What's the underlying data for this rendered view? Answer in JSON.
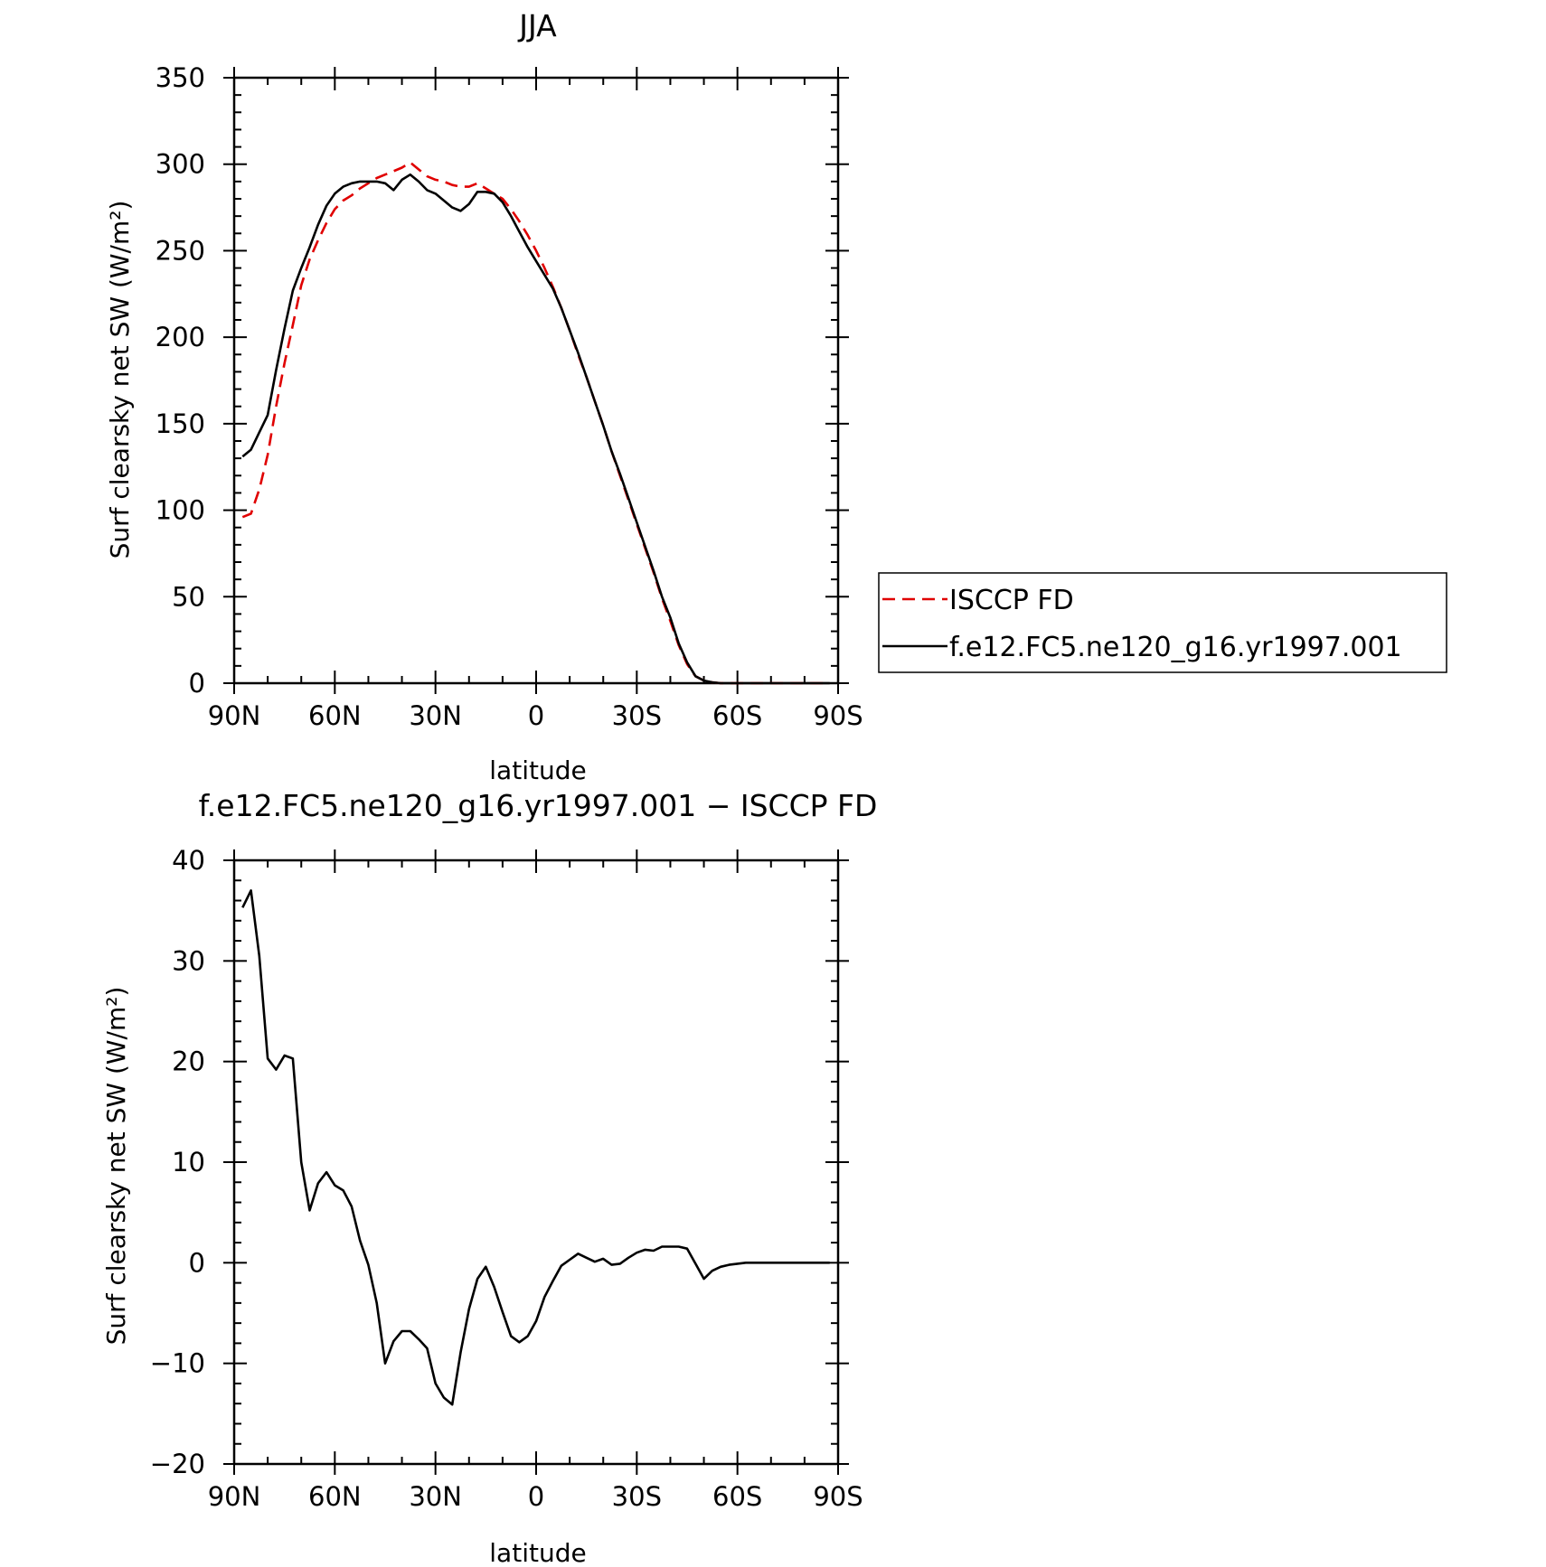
{
  "chart_data": [
    {
      "type": "line",
      "title": "JJA",
      "xlabel": "latitude",
      "ylabel": "Surf clearsky net SW (W/m²)",
      "xlim": [
        90,
        -90
      ],
      "ylim": [
        0,
        350
      ],
      "x_ticks": [
        90,
        60,
        30,
        0,
        -30,
        -60,
        -90
      ],
      "x_tick_labels": [
        "90N",
        "60N",
        "30N",
        "0",
        "30S",
        "60S",
        "90S"
      ],
      "y_ticks": [
        0,
        50,
        100,
        150,
        200,
        250,
        300,
        350
      ],
      "y_tick_labels": [
        "0",
        "50",
        "100",
        "150",
        "200",
        "250",
        "300",
        "350"
      ],
      "legend_position": "right",
      "series": [
        {
          "name": "ISCCP FD",
          "color": "#e00000",
          "dash": "dashed",
          "x": [
            87.5,
            85,
            82.5,
            80,
            77.5,
            75,
            72.5,
            70,
            67.5,
            65,
            62.5,
            60,
            57.5,
            55,
            52.5,
            50,
            47.5,
            45,
            42.5,
            40,
            37.5,
            35,
            32.5,
            30,
            27.5,
            25,
            22.5,
            20,
            17.5,
            15,
            12.5,
            10,
            7.5,
            5,
            2.5,
            0,
            -2.5,
            -5,
            -7.5,
            -10,
            -12.5,
            -15,
            -17.5,
            -20,
            -22.5,
            -25,
            -27.5,
            -30,
            -32.5,
            -35,
            -37.5,
            -40,
            -42.5,
            -45,
            -47.5,
            -50,
            -52.5,
            -55,
            -57.5,
            -60,
            -62.5,
            -65,
            -67.5,
            -70,
            -72.5,
            -75,
            -77.5,
            -80,
            -82.5,
            -85,
            -87.5
          ],
          "y": [
            96,
            98,
            112,
            132,
            160,
            185,
            207,
            230,
            245,
            256,
            266,
            274,
            279,
            282,
            286,
            289,
            292,
            294,
            296,
            298,
            301,
            297,
            293,
            291,
            290,
            288,
            287,
            287,
            289,
            286,
            283,
            280,
            274,
            267,
            259,
            250,
            240,
            229,
            217,
            204,
            190,
            177,
            163,
            149,
            134,
            120,
            106,
            92,
            78,
            64,
            49,
            36,
            22,
            11,
            4,
            1.5,
            0.5,
            0,
            0,
            0,
            0,
            0,
            0,
            0,
            0,
            0,
            0,
            0,
            0,
            0,
            0
          ]
        },
        {
          "name": "f.e12.FC5.ne120_g16.yr1997.001",
          "color": "#000000",
          "dash": "solid",
          "x": [
            87.5,
            85,
            82.5,
            80,
            77.5,
            75,
            72.5,
            70,
            67.5,
            65,
            62.5,
            60,
            57.5,
            55,
            52.5,
            50,
            47.5,
            45,
            42.5,
            40,
            37.5,
            35,
            32.5,
            30,
            27.5,
            25,
            22.5,
            20,
            17.5,
            15,
            12.5,
            10,
            7.5,
            5,
            2.5,
            0,
            -2.5,
            -5,
            -7.5,
            -10,
            -12.5,
            -15,
            -17.5,
            -20,
            -22.5,
            -25,
            -27.5,
            -30,
            -32.5,
            -35,
            -37.5,
            -40,
            -42.5,
            -45,
            -47.5,
            -50,
            -52.5,
            -55,
            -57.5,
            -60,
            -62.5,
            -65,
            -67.5,
            -70,
            -72.5,
            -75,
            -77.5,
            -80,
            -82.5,
            -85,
            -87.5
          ],
          "y": [
            131,
            135,
            145,
            155,
            181,
            205,
            227,
            240,
            252,
            265,
            276,
            283,
            287,
            289,
            290,
            290,
            290,
            289,
            285,
            291,
            294,
            290,
            285,
            283,
            279,
            275,
            273,
            277,
            284,
            284,
            283,
            278,
            270,
            261,
            252,
            244,
            236,
            228,
            217,
            204,
            191,
            177,
            163,
            149,
            134,
            121,
            107,
            93,
            79,
            65,
            50,
            38,
            23,
            12,
            4,
            1.5,
            0.5,
            0,
            0,
            0,
            0,
            0,
            0,
            0,
            0,
            0,
            0,
            0,
            0,
            0,
            0
          ]
        }
      ]
    },
    {
      "type": "line",
      "title": "f.e12.FC5.ne120_g16.yr1997.001 − ISCCP FD",
      "xlabel": "latitude",
      "ylabel": "Surf clearsky net SW (W/m²)",
      "xlim": [
        90,
        -90
      ],
      "ylim": [
        -20,
        40
      ],
      "x_ticks": [
        90,
        60,
        30,
        0,
        -30,
        -60,
        -90
      ],
      "x_tick_labels": [
        "90N",
        "60N",
        "30N",
        "0",
        "30S",
        "60S",
        "90S"
      ],
      "y_ticks": [
        -20,
        -10,
        0,
        10,
        20,
        30,
        40
      ],
      "y_tick_labels": [
        "−20",
        "−10",
        "0",
        "10",
        "20",
        "30",
        "40"
      ],
      "series": [
        {
          "color": "#000000",
          "dash": "solid",
          "x": [
            87.5,
            85,
            82.5,
            80,
            77.5,
            75,
            72.5,
            70,
            67.5,
            65,
            62.5,
            60,
            57.5,
            55,
            52.5,
            50,
            47.5,
            45,
            42.5,
            40,
            37.5,
            35,
            32.5,
            30,
            27.5,
            25,
            22.5,
            20,
            17.5,
            15,
            12.5,
            10,
            7.5,
            5,
            2.5,
            0,
            -2.5,
            -5,
            -7.5,
            -10,
            -12.5,
            -15,
            -17.5,
            -20,
            -22.5,
            -25,
            -27.5,
            -30,
            -32.5,
            -35,
            -37.5,
            -40,
            -42.5,
            -45,
            -47.5,
            -50,
            -52.5,
            -55,
            -57.5,
            -60,
            -62.5,
            -65,
            -67.5,
            -70,
            -72.5,
            -75,
            -77.5,
            -80,
            -82.5,
            -85,
            -87.5
          ],
          "y": [
            35.3,
            37,
            30.5,
            20.3,
            19.2,
            20.6,
            20.3,
            10,
            5.2,
            7.9,
            9,
            7.7,
            7.2,
            5.6,
            2.2,
            -0.2,
            -4,
            -10,
            -7.8,
            -6.8,
            -6.8,
            -7.6,
            -8.5,
            -12,
            -13.4,
            -14.1,
            -8.9,
            -4.6,
            -1.6,
            -0.4,
            -2.4,
            -4.9,
            -7.3,
            -7.9,
            -7.3,
            -5.8,
            -3.4,
            -1.8,
            -0.3,
            0.3,
            0.9,
            0.5,
            0.1,
            0.4,
            -0.2,
            -0.1,
            0.5,
            1,
            1.3,
            1.2,
            1.6,
            1.6,
            1.6,
            1.4,
            -0.1,
            -1.6,
            -0.8,
            -0.4,
            -0.2,
            -0.1,
            0,
            0,
            0,
            0,
            0,
            0,
            0,
            0,
            0,
            0,
            0
          ]
        }
      ]
    }
  ]
}
